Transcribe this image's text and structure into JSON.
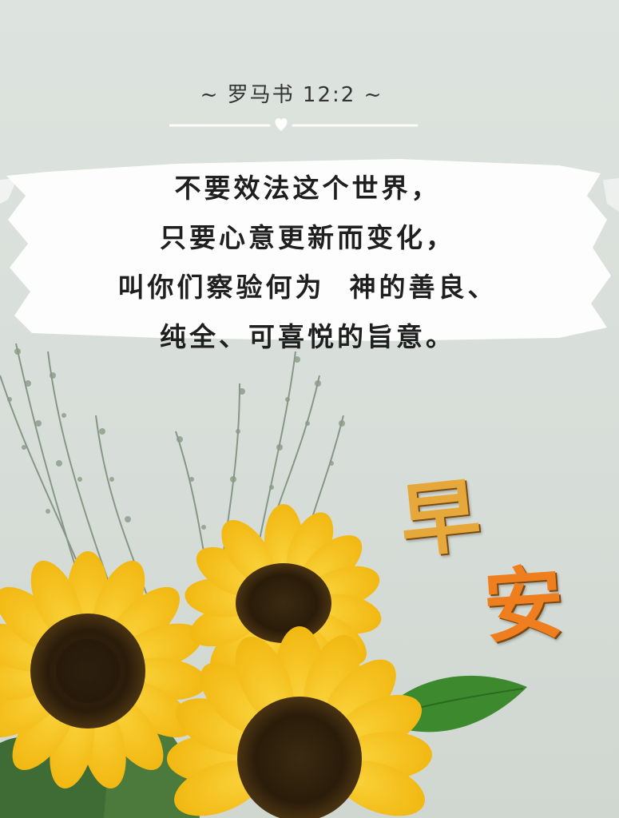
{
  "verse": {
    "reference": "~ 罗马书 12:2 ~",
    "lines": [
      "不要效法这个世界，",
      "只要心意更新而变化，",
      "叫你们察验何为  神的善良、",
      "纯全、可喜悦的旨意。"
    ]
  },
  "greeting": {
    "char1": "早",
    "char2": "安"
  },
  "colors": {
    "background": "#dde3de",
    "text": "#1f1f1f",
    "greeting_gold": "#e6a83a",
    "greeting_orange": "#ef7e1e",
    "petal": "#f7c81e",
    "leaf": "#3d8a2e"
  }
}
